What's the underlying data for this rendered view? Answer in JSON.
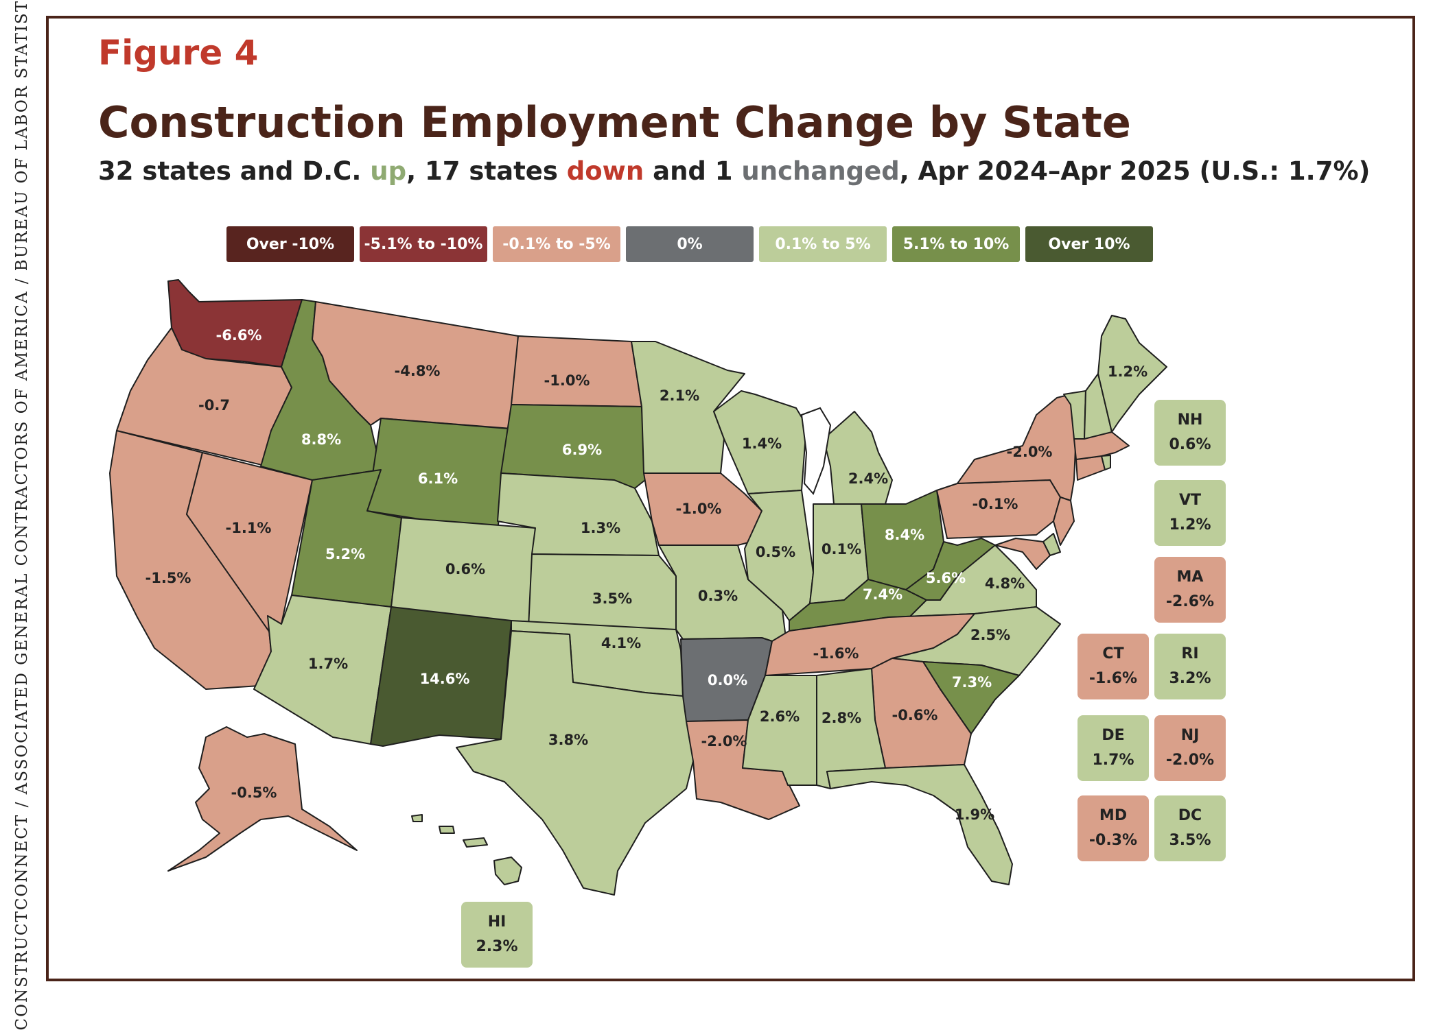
{
  "side_credit": "CONSTRUCTCONNECT / ASSOCIATED GENERAL CONTRACTORS OF AMERICA / BUREAU OF LABOR STATISTICS",
  "figure_label": "Figure 4",
  "title": "Construction Employment Change by State",
  "subtitle": {
    "part1": "32 states and D.C. ",
    "up": "up",
    "part2": ", 17 states ",
    "down": "down",
    "part3": " and 1 ",
    "unchanged": "unchanged",
    "part4": ", Apr 2024–Apr 2025 (U.S.: 1.7%)"
  },
  "legend": [
    {
      "label": "Over -10%",
      "color": "#58241f"
    },
    {
      "label": "-5.1% to -10%",
      "color": "#8b3436"
    },
    {
      "label": "-0.1% to -5%",
      "color": "#d9a08a"
    },
    {
      "label": "0%",
      "color": "#6c6f72"
    },
    {
      "label": "0.1% to 5%",
      "color": "#bccd9a"
    },
    {
      "label": "5.1% to 10%",
      "color": "#77904b"
    },
    {
      "label": "Over 10%",
      "color": "#4a5a31"
    }
  ],
  "states": {
    "WA": {
      "value": "-6.6%",
      "color": "#8b3436",
      "text": "#ffffff"
    },
    "OR": {
      "value": "-0.7",
      "color": "#d9a08a",
      "text": "#222222"
    },
    "CA": {
      "value": "-1.5%",
      "color": "#d9a08a",
      "text": "#222222"
    },
    "NV": {
      "value": "-1.1%",
      "color": "#d9a08a",
      "text": "#222222"
    },
    "ID": {
      "value": "8.8%",
      "color": "#77904b",
      "text": "#ffffff"
    },
    "MT": {
      "value": "-4.8%",
      "color": "#d9a08a",
      "text": "#222222"
    },
    "WY": {
      "value": "6.1%",
      "color": "#77904b",
      "text": "#ffffff"
    },
    "UT": {
      "value": "5.2%",
      "color": "#77904b",
      "text": "#ffffff"
    },
    "AZ": {
      "value": "1.7%",
      "color": "#bccd9a",
      "text": "#222222"
    },
    "CO": {
      "value": "0.6%",
      "color": "#bccd9a",
      "text": "#222222"
    },
    "NM": {
      "value": "14.6%",
      "color": "#4a5a31",
      "text": "#ffffff"
    },
    "ND": {
      "value": "-1.0%",
      "color": "#d9a08a",
      "text": "#222222"
    },
    "SD": {
      "value": "6.9%",
      "color": "#77904b",
      "text": "#ffffff"
    },
    "NE": {
      "value": "1.3%",
      "color": "#bccd9a",
      "text": "#222222"
    },
    "KS": {
      "value": "3.5%",
      "color": "#bccd9a",
      "text": "#222222"
    },
    "OK": {
      "value": "4.1%",
      "color": "#bccd9a",
      "text": "#222222"
    },
    "TX": {
      "value": "3.8%",
      "color": "#bccd9a",
      "text": "#222222"
    },
    "MN": {
      "value": "2.1%",
      "color": "#bccd9a",
      "text": "#222222"
    },
    "IA": {
      "value": "-1.0%",
      "color": "#d9a08a",
      "text": "#222222"
    },
    "MO": {
      "value": "0.3%",
      "color": "#bccd9a",
      "text": "#222222"
    },
    "AR": {
      "value": "0.0%",
      "color": "#6c6f72",
      "text": "#ffffff"
    },
    "LA": {
      "value": "-2.0%",
      "color": "#d9a08a",
      "text": "#222222"
    },
    "WI": {
      "value": "1.4%",
      "color": "#bccd9a",
      "text": "#222222"
    },
    "IL": {
      "value": "0.5%",
      "color": "#bccd9a",
      "text": "#222222"
    },
    "MI": {
      "value": "2.4%",
      "color": "#bccd9a",
      "text": "#222222"
    },
    "IN": {
      "value": "0.1%",
      "color": "#bccd9a",
      "text": "#222222"
    },
    "OH": {
      "value": "8.4%",
      "color": "#77904b",
      "text": "#ffffff"
    },
    "KY": {
      "value": "7.4%",
      "color": "#77904b",
      "text": "#ffffff"
    },
    "TN": {
      "value": "-1.6%",
      "color": "#d9a08a",
      "text": "#222222"
    },
    "MS": {
      "value": "2.6%",
      "color": "#bccd9a",
      "text": "#222222"
    },
    "AL": {
      "value": "2.8%",
      "color": "#bccd9a",
      "text": "#222222"
    },
    "GA": {
      "value": "-0.6%",
      "color": "#d9a08a",
      "text": "#222222"
    },
    "FL": {
      "value": "1.9%",
      "color": "#bccd9a",
      "text": "#222222"
    },
    "SC": {
      "value": "7.3%",
      "color": "#77904b",
      "text": "#ffffff"
    },
    "NC": {
      "value": "2.5%",
      "color": "#bccd9a",
      "text": "#222222"
    },
    "VA": {
      "value": "4.8%",
      "color": "#bccd9a",
      "text": "#222222"
    },
    "WV": {
      "value": "5.6%",
      "color": "#77904b",
      "text": "#ffffff"
    },
    "PA": {
      "value": "-0.1%",
      "color": "#d9a08a",
      "text": "#222222"
    },
    "NY": {
      "value": "-2.0%",
      "color": "#d9a08a",
      "text": "#222222"
    },
    "ME": {
      "value": "1.2%",
      "color": "#bccd9a",
      "text": "#222222"
    },
    "AK": {
      "value": "-0.5%",
      "color": "#d9a08a",
      "text": "#222222"
    }
  },
  "small_state_boxes": [
    {
      "abbr": "NH",
      "value": "0.6%",
      "color": "#bccd9a"
    },
    {
      "abbr": "VT",
      "value": "1.2%",
      "color": "#bccd9a"
    },
    {
      "abbr": "MA",
      "value": "-2.6%",
      "color": "#d9a08a"
    },
    {
      "abbr": "CT",
      "value": "-1.6%",
      "color": "#d9a08a"
    },
    {
      "abbr": "RI",
      "value": "3.2%",
      "color": "#bccd9a"
    },
    {
      "abbr": "DE",
      "value": "1.7%",
      "color": "#bccd9a"
    },
    {
      "abbr": "NJ",
      "value": "-2.0%",
      "color": "#d9a08a"
    },
    {
      "abbr": "MD",
      "value": "-0.3%",
      "color": "#d9a08a"
    },
    {
      "abbr": "DC",
      "value": "3.5%",
      "color": "#bccd9a"
    },
    {
      "abbr": "HI",
      "value": "2.3%",
      "color": "#bccd9a"
    }
  ],
  "extra_colors": {
    "NJ": "#d9a08a",
    "MD": "#d9a08a",
    "DE": "#bccd9a",
    "CT": "#d9a08a",
    "MA": "#d9a08a",
    "RI": "#bccd9a",
    "NH": "#bccd9a",
    "VT": "#bccd9a",
    "HI": "#bccd9a"
  }
}
